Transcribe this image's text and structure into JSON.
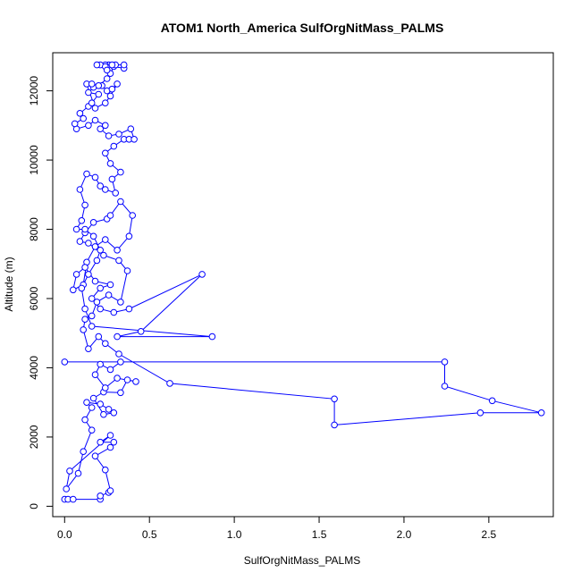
{
  "chart_data": {
    "type": "line",
    "title": "ATOM1 North_America SulfOrgNitMass_PALMS",
    "xlabel": "SulfOrgNitMass_PALMS",
    "ylabel": "Altitude (m)",
    "xlim": [
      -0.07,
      2.88
    ],
    "ylim": [
      -300,
      13100
    ],
    "xticks": [
      0.0,
      0.5,
      1.0,
      1.5,
      2.0,
      2.5
    ],
    "xtick_labels": [
      "0.0",
      "0.5",
      "1.0",
      "1.5",
      "2.0",
      "2.5"
    ],
    "yticks": [
      0,
      2000,
      4000,
      6000,
      8000,
      10000,
      12000
    ],
    "ytick_labels": [
      "0",
      "2000",
      "4000",
      "6000",
      "8000",
      "10000",
      "12000"
    ],
    "grid": false,
    "series": [
      {
        "color": "#0000ff",
        "marker": "open-circle",
        "points": [
          [
            0.0,
            200
          ],
          [
            0.02,
            200
          ],
          [
            0.05,
            200
          ],
          [
            0.21,
            200
          ],
          [
            0.21,
            300
          ],
          [
            0.26,
            400
          ],
          [
            0.27,
            450
          ],
          [
            0.24,
            1050
          ],
          [
            0.18,
            1450
          ],
          [
            0.27,
            1700
          ],
          [
            0.29,
            1850
          ],
          [
            0.21,
            1850
          ],
          [
            0.27,
            2050
          ],
          [
            0.03,
            1020
          ],
          [
            0.01,
            500
          ],
          [
            0.08,
            950
          ],
          [
            0.11,
            1580
          ],
          [
            0.16,
            2200
          ],
          [
            0.12,
            2500
          ],
          [
            0.16,
            2850
          ],
          [
            0.13,
            3000
          ],
          [
            0.21,
            2950
          ],
          [
            0.26,
            2800
          ],
          [
            0.29,
            2700
          ],
          [
            0.23,
            2650
          ],
          [
            0.17,
            3120
          ],
          [
            0.23,
            3300
          ],
          [
            0.33,
            3280
          ],
          [
            0.37,
            3650
          ],
          [
            0.42,
            3600
          ],
          [
            0.31,
            3700
          ],
          [
            0.24,
            3420
          ],
          [
            0.18,
            3800
          ],
          [
            0.21,
            4100
          ],
          [
            0.27,
            3950
          ],
          [
            0.33,
            4170
          ],
          [
            0.0,
            4170
          ],
          [
            2.24,
            4170
          ],
          [
            2.24,
            3470
          ],
          [
            2.52,
            3050
          ],
          [
            2.81,
            2700
          ],
          [
            2.45,
            2700
          ],
          [
            1.59,
            2350
          ],
          [
            1.59,
            3100
          ],
          [
            0.62,
            3550
          ],
          [
            0.32,
            4400
          ],
          [
            0.24,
            4700
          ],
          [
            0.2,
            4900
          ],
          [
            0.14,
            4550
          ],
          [
            0.11,
            5100
          ],
          [
            0.12,
            5400
          ],
          [
            0.16,
            5500
          ],
          [
            0.19,
            5900
          ],
          [
            0.26,
            6100
          ],
          [
            0.33,
            5900
          ],
          [
            0.37,
            6800
          ],
          [
            0.32,
            7100
          ],
          [
            0.23,
            7250
          ],
          [
            0.14,
            7600
          ],
          [
            0.09,
            7650
          ],
          [
            0.12,
            7900
          ],
          [
            0.17,
            8200
          ],
          [
            0.25,
            8300
          ],
          [
            0.27,
            8400
          ],
          [
            0.33,
            8800
          ],
          [
            0.4,
            8400
          ],
          [
            0.38,
            7800
          ],
          [
            0.31,
            7400
          ],
          [
            0.24,
            7700
          ],
          [
            0.18,
            7500
          ],
          [
            0.13,
            7050
          ],
          [
            0.11,
            6400
          ],
          [
            0.05,
            6250
          ],
          [
            0.07,
            6700
          ],
          [
            0.12,
            6900
          ],
          [
            0.18,
            6500
          ],
          [
            0.27,
            6400
          ],
          [
            0.21,
            6300
          ],
          [
            0.16,
            6000
          ],
          [
            0.21,
            5700
          ],
          [
            0.29,
            5600
          ],
          [
            0.38,
            5700
          ],
          [
            0.81,
            6700
          ],
          [
            0.45,
            5050
          ],
          [
            0.31,
            4900
          ],
          [
            0.87,
            4900
          ],
          [
            0.16,
            5200
          ],
          [
            0.12,
            5700
          ],
          [
            0.1,
            6300
          ],
          [
            0.14,
            6700
          ],
          [
            0.19,
            7100
          ],
          [
            0.21,
            7400
          ],
          [
            0.17,
            7800
          ],
          [
            0.12,
            8000
          ],
          [
            0.07,
            8000
          ],
          [
            0.1,
            8250
          ],
          [
            0.12,
            8700
          ],
          [
            0.09,
            9150
          ],
          [
            0.13,
            9600
          ],
          [
            0.18,
            9500
          ],
          [
            0.21,
            9250
          ],
          [
            0.24,
            9150
          ],
          [
            0.3,
            9050
          ],
          [
            0.28,
            9450
          ],
          [
            0.33,
            9650
          ],
          [
            0.27,
            9900
          ],
          [
            0.24,
            10200
          ],
          [
            0.29,
            10400
          ],
          [
            0.35,
            10600
          ],
          [
            0.38,
            10600
          ],
          [
            0.41,
            10600
          ],
          [
            0.39,
            10900
          ],
          [
            0.32,
            10750
          ],
          [
            0.26,
            10700
          ],
          [
            0.21,
            10900
          ],
          [
            0.24,
            11000
          ],
          [
            0.18,
            11150
          ],
          [
            0.14,
            11000
          ],
          [
            0.07,
            10900
          ],
          [
            0.06,
            11050
          ],
          [
            0.11,
            11200
          ],
          [
            0.09,
            11350
          ],
          [
            0.14,
            11550
          ],
          [
            0.16,
            11650
          ],
          [
            0.2,
            11900
          ],
          [
            0.14,
            11950
          ],
          [
            0.17,
            12100
          ],
          [
            0.22,
            12150
          ],
          [
            0.25,
            12000
          ],
          [
            0.28,
            12050
          ],
          [
            0.31,
            12200
          ],
          [
            0.27,
            11850
          ],
          [
            0.24,
            11650
          ],
          [
            0.18,
            11500
          ],
          [
            0.13,
            12200
          ],
          [
            0.16,
            12200
          ],
          [
            0.2,
            12150
          ],
          [
            0.25,
            12350
          ],
          [
            0.27,
            12500
          ],
          [
            0.29,
            12700
          ],
          [
            0.35,
            12650
          ],
          [
            0.35,
            12750
          ],
          [
            0.3,
            12750
          ],
          [
            0.26,
            12750
          ],
          [
            0.24,
            12750
          ],
          [
            0.21,
            12750
          ],
          [
            0.19,
            12750
          ],
          [
            0.24,
            12700
          ],
          [
            0.28,
            12750
          ],
          [
            0.25,
            12600
          ]
        ]
      }
    ]
  }
}
